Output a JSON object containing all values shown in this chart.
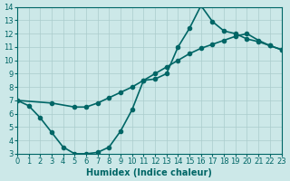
{
  "title": "",
  "xlabel": "Humidex (Indice chaleur)",
  "ylabel": "",
  "bg_color": "#cce8e8",
  "line_color": "#006666",
  "xlim": [
    0,
    23
  ],
  "ylim": [
    3,
    14
  ],
  "xticks": [
    0,
    1,
    2,
    3,
    4,
    5,
    6,
    7,
    8,
    9,
    10,
    11,
    12,
    13,
    14,
    15,
    16,
    17,
    18,
    19,
    20,
    21,
    22,
    23
  ],
  "yticks": [
    3,
    4,
    5,
    6,
    7,
    8,
    9,
    10,
    11,
    12,
    13,
    14
  ],
  "line1_x": [
    0,
    1,
    2,
    3,
    4,
    5,
    6,
    7,
    8,
    9,
    10,
    11,
    12,
    13,
    14,
    15,
    16,
    17,
    18,
    19,
    20,
    21,
    22,
    23
  ],
  "line1_y": [
    7,
    6.6,
    5.7,
    4.6,
    3.5,
    3.0,
    3.0,
    3.1,
    3.5,
    4.7,
    6.3,
    8.5,
    8.6,
    9.0,
    11.0,
    12.4,
    14.1,
    12.9,
    12.2,
    12.0,
    11.6,
    11.4,
    11.1,
    10.8
  ],
  "line2_x": [
    0,
    3,
    5,
    6,
    7,
    8,
    9,
    10,
    11,
    12,
    13,
    14,
    15,
    16,
    17,
    18,
    19,
    20,
    21,
    22,
    23
  ],
  "line2_y": [
    7,
    6.8,
    6.5,
    6.5,
    6.8,
    7.2,
    7.6,
    8.0,
    8.5,
    9.0,
    9.5,
    10.0,
    10.5,
    10.9,
    11.2,
    11.5,
    11.8,
    12.0,
    11.5,
    11.1,
    10.8
  ],
  "marker_size": 3,
  "line_width": 1.2,
  "grid_color": "#aacccc",
  "tick_fontsize": 6,
  "xlabel_fontsize": 7
}
